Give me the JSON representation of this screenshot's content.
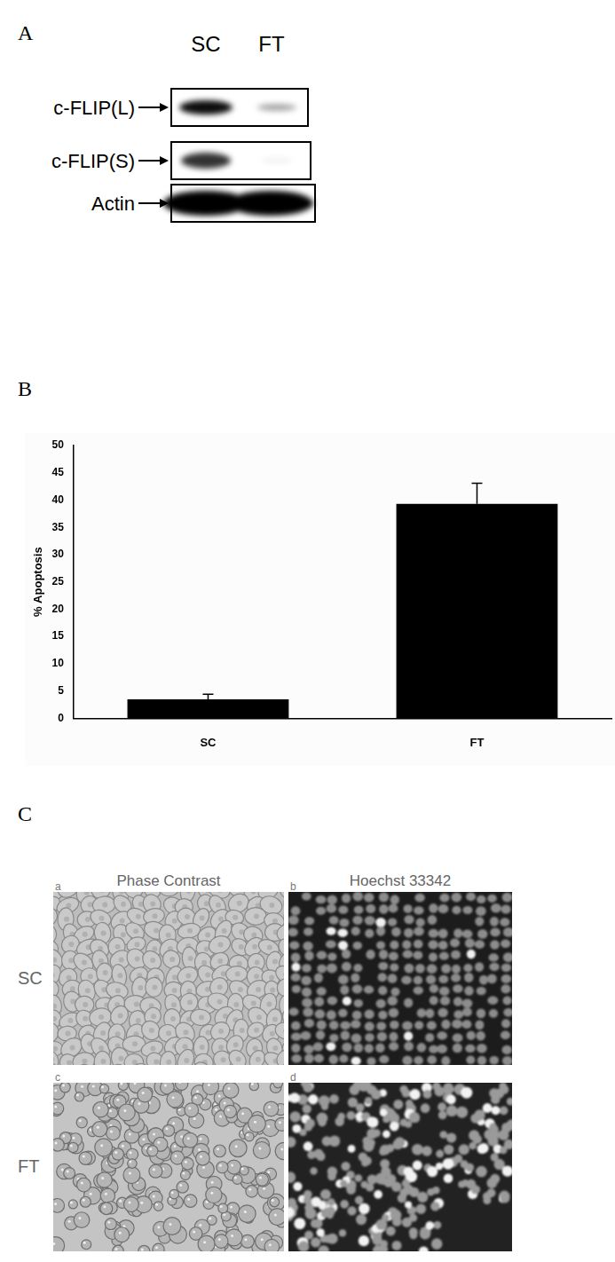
{
  "panel_labels": [
    "A",
    "B",
    "C"
  ],
  "panel_a": {
    "columns": [
      "SC",
      "FT"
    ],
    "rows": [
      "c-FLIP(L)",
      "c-FLIP(S)",
      "Actin"
    ]
  },
  "chart_data": {
    "type": "bar",
    "categories": [
      "SC",
      "FT"
    ],
    "values": [
      3.5,
      39.3
    ],
    "errors": [
      0.9,
      3.8
    ],
    "color": "#000000",
    "y_label": "% Apoptosis",
    "ylim": [
      0,
      50
    ],
    "yticks": [
      0,
      5,
      10,
      15,
      20,
      25,
      30,
      35,
      40,
      45,
      50
    ],
    "grid": false
  },
  "panel_c": {
    "columns": [
      "Phase Contrast",
      "Hoechst 33342"
    ],
    "rows": [
      "SC",
      "FT"
    ],
    "subpanels": [
      "a",
      "b",
      "c",
      "d"
    ]
  }
}
